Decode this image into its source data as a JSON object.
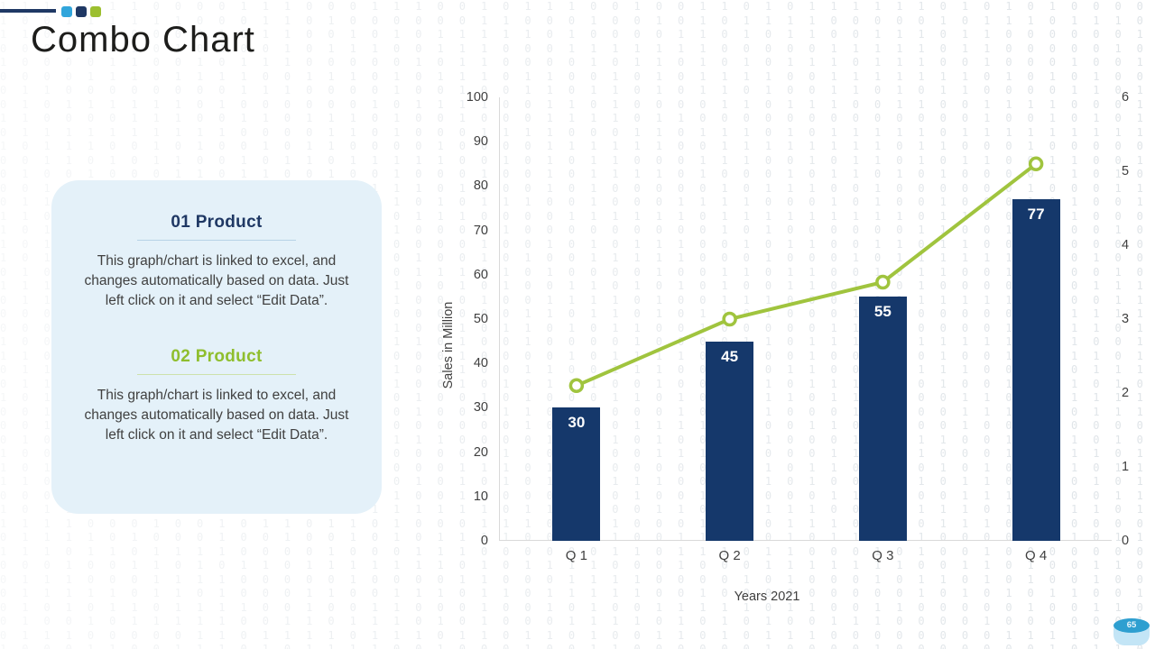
{
  "slide": {
    "title": "Combo Chart",
    "page_number": "65"
  },
  "accent_colors": {
    "light_blue": "#31a5db",
    "navy": "#1f3864",
    "green": "#9cbf2f"
  },
  "info_panel": {
    "sections": [
      {
        "heading": "01 Product",
        "heading_color": "#1f3864",
        "body": "This graph/chart is linked to excel, and changes automatically based on data. Just left click on it and select “Edit Data”."
      },
      {
        "heading": "02 Product",
        "heading_color": "#8fbe2e",
        "body": "This graph/chart is linked to excel, and changes automatically based on data. Just left click on it and select “Edit Data”."
      }
    ]
  },
  "chart_data": {
    "type": "combo",
    "categories": [
      "Q 1",
      "Q 2",
      "Q 3",
      "Q 4"
    ],
    "series": [
      {
        "name": "01 Product",
        "type": "bar",
        "axis": "left",
        "values": [
          30,
          45,
          55,
          77
        ],
        "data_labels": [
          "30",
          "45",
          "55",
          "77"
        ],
        "color": "#15386b"
      },
      {
        "name": "02 Product",
        "type": "line",
        "axis": "right",
        "values": [
          2.1,
          3.0,
          3.5,
          5.1
        ],
        "color": "#a0c43e",
        "marker": "circle-open"
      }
    ],
    "left_axis": {
      "min": 0,
      "max": 100,
      "step": 10,
      "ticks": [
        "0",
        "10",
        "20",
        "30",
        "40",
        "50",
        "60",
        "70",
        "80",
        "90",
        "100"
      ]
    },
    "right_axis": {
      "min": 0,
      "max": 6,
      "step": 1,
      "ticks": [
        "0",
        "1",
        "2",
        "3",
        "4",
        "5",
        "6"
      ]
    },
    "ylabel_left": "Sales in Million",
    "xlabel": "Years 2021",
    "grid": false,
    "legend": "none"
  }
}
